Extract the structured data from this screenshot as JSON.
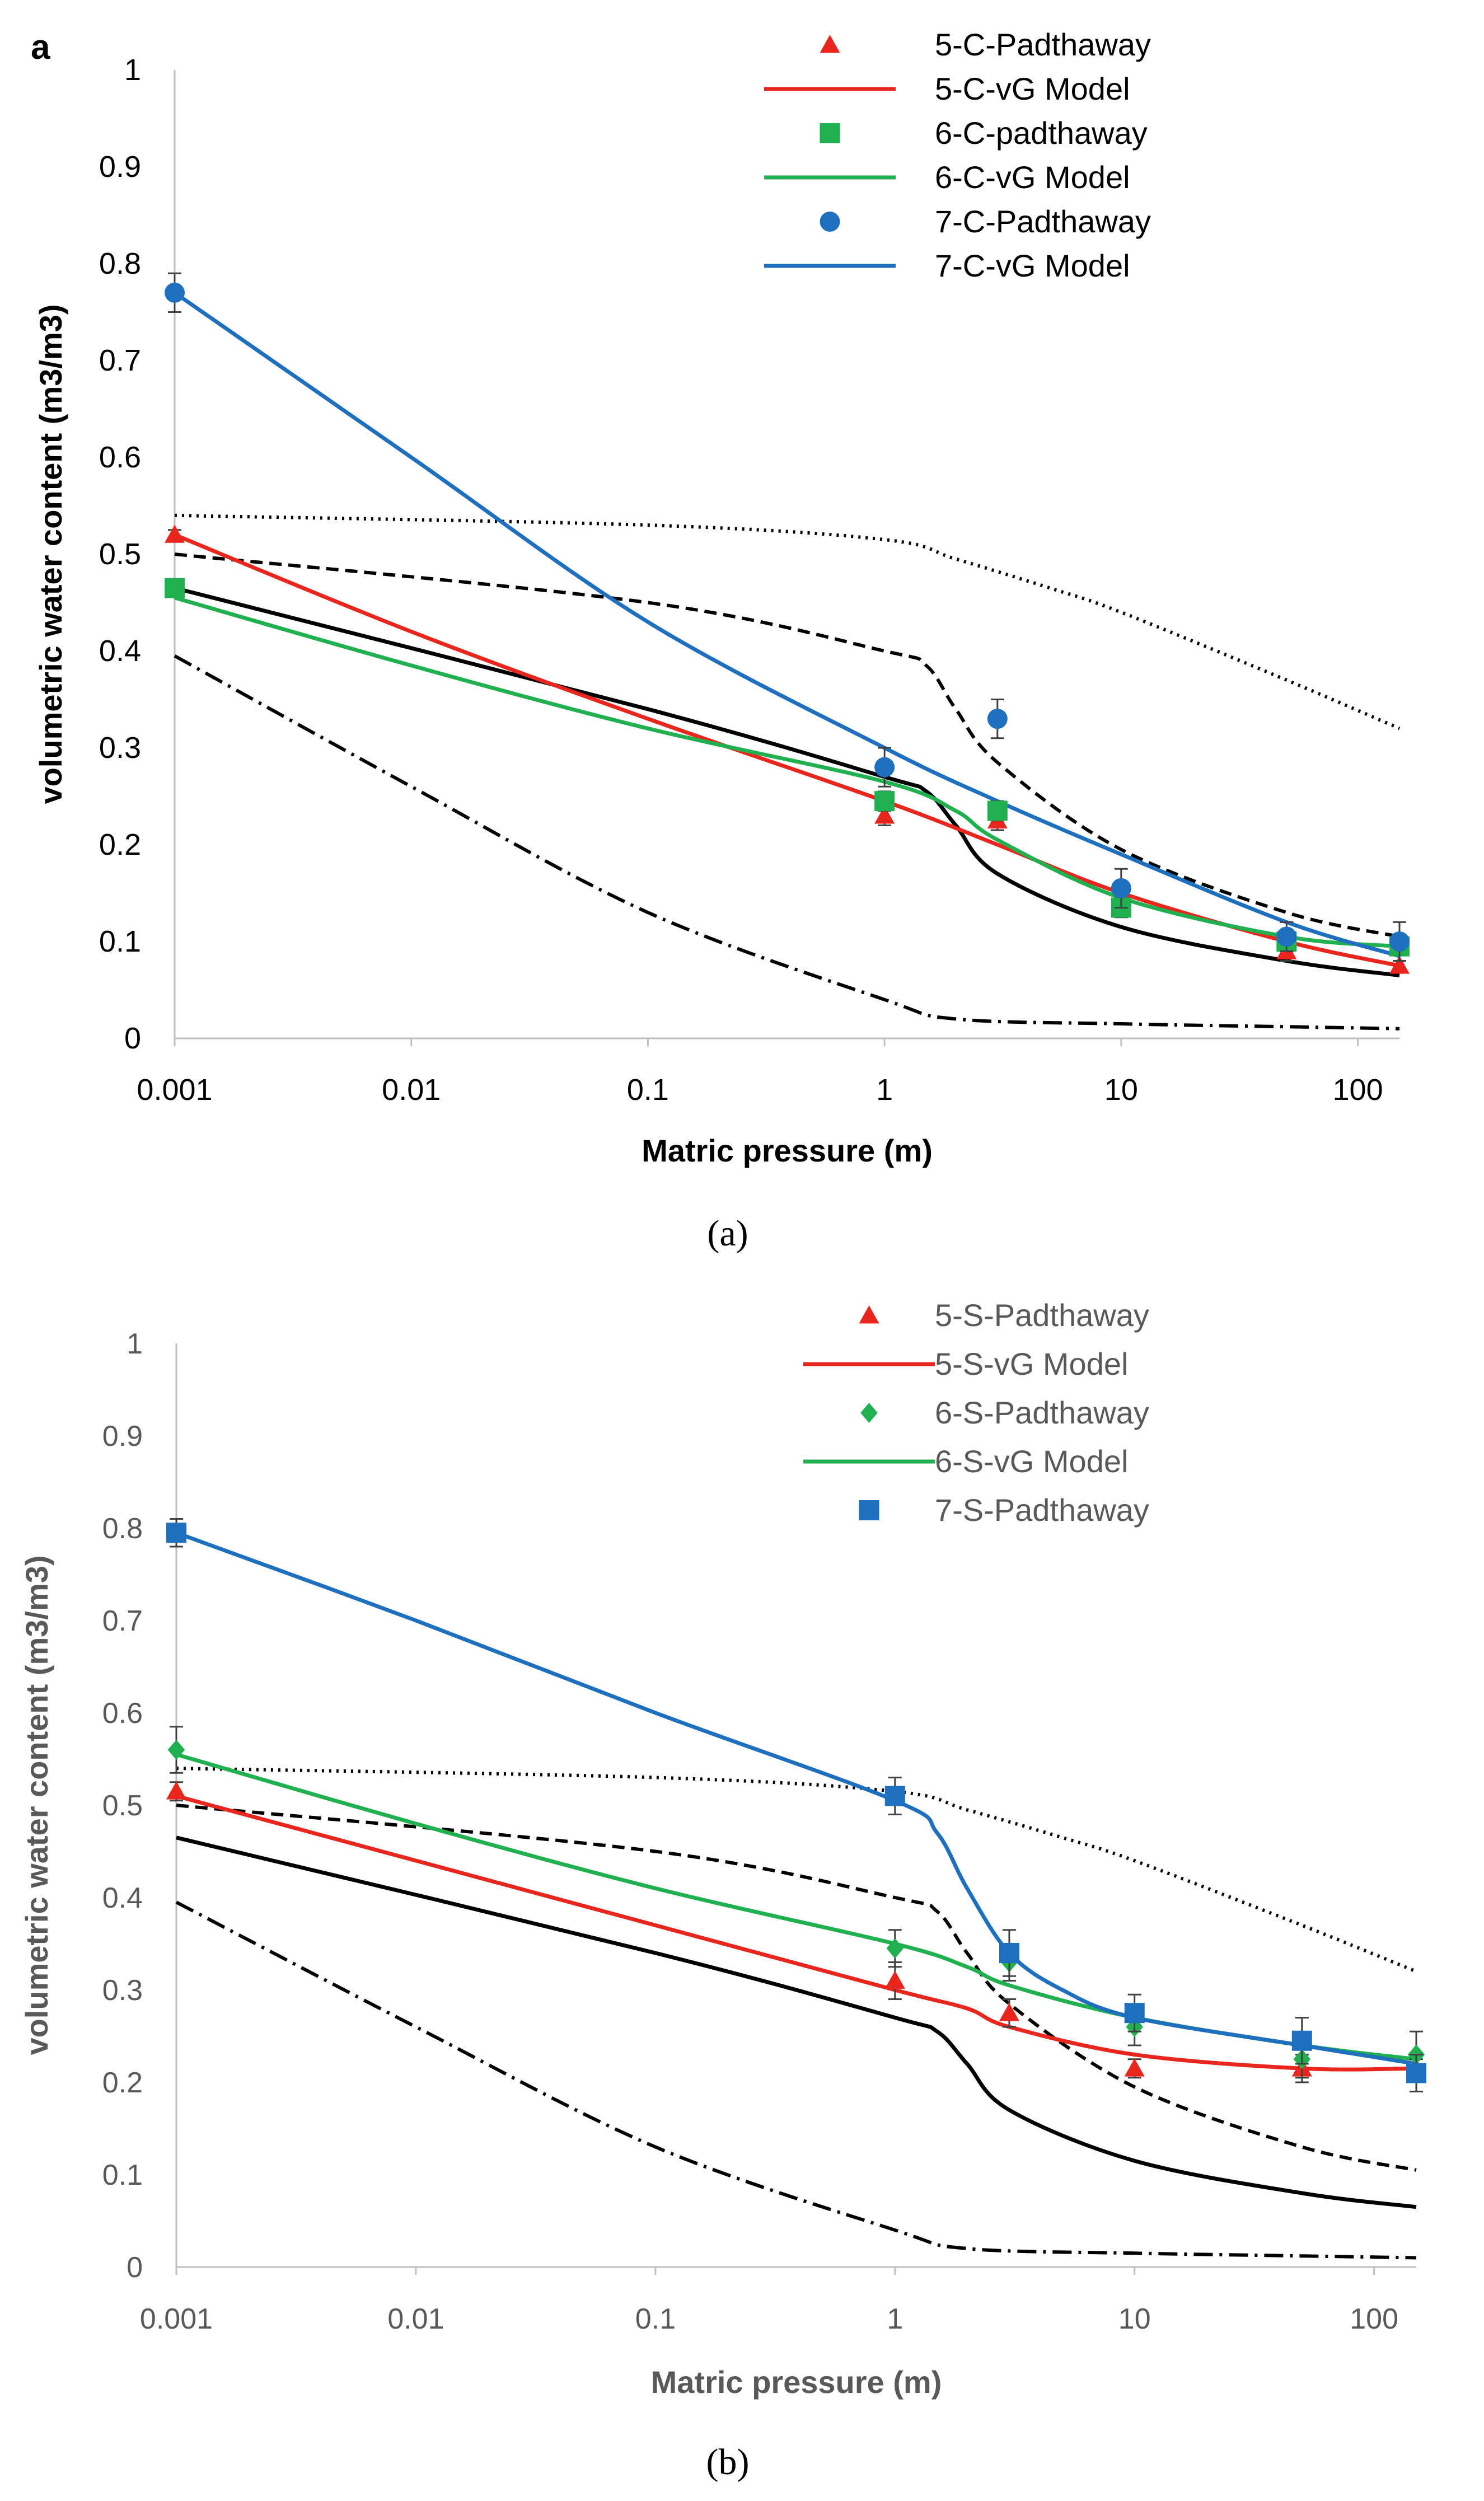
{
  "panel_letter": "a",
  "captions": [
    "(a)",
    "(b)"
  ],
  "colors": {
    "red": "#e8261d",
    "green": "#20b050",
    "blue": "#1f6fbf",
    "black": "#000000"
  },
  "chart_data": [
    {
      "type": "line",
      "xscale": "log",
      "xlabel": "Matric pressure (m)",
      "ylabel": "volumetric water content (m3/m3)",
      "xlim": [
        0.001,
        150
      ],
      "ylim": [
        0,
        1
      ],
      "xticks": [
        "0.001",
        "0.01",
        "0.1",
        "1",
        "10",
        "100"
      ],
      "yticks": [
        "0",
        "0.1",
        "0.2",
        "0.3",
        "0.4",
        "0.5",
        "0.6",
        "0.7",
        "0.8",
        "0.9",
        "1"
      ],
      "legend": "top-right",
      "points": [
        {
          "name": "5-C-Padthaway",
          "color": "#e8261d",
          "marker": "triangle",
          "x": [
            0.001,
            1,
            3,
            10,
            50,
            150
          ],
          "y": [
            0.52,
            0.23,
            0.225,
            0.14,
            0.09,
            0.075
          ],
          "err": [
            0.005,
            0.01,
            0.01,
            0.01,
            0.01,
            0.005
          ]
        },
        {
          "name": "6-C-padthaway",
          "color": "#20b050",
          "marker": "square",
          "x": [
            0.001,
            1,
            3,
            10,
            50,
            150
          ],
          "y": [
            0.465,
            0.245,
            0.235,
            0.135,
            0.1,
            0.095
          ],
          "err": [
            0.005,
            0.01,
            0.01,
            0.01,
            0.01,
            0.005
          ]
        },
        {
          "name": "7-C-Padthaway",
          "color": "#1f6fbf",
          "marker": "circle",
          "x": [
            0.001,
            1,
            3,
            10,
            50,
            150
          ],
          "y": [
            0.77,
            0.28,
            0.33,
            0.155,
            0.105,
            0.1
          ],
          "err": [
            0.02,
            0.02,
            0.02,
            0.02,
            0.015,
            0.02
          ]
        }
      ],
      "models": [
        {
          "name": "5-C-vG Model",
          "color": "#e8261d",
          "x": [
            0.001,
            0.01,
            0.1,
            1,
            3,
            10,
            50,
            150
          ],
          "y": [
            0.52,
            0.42,
            0.33,
            0.245,
            0.2,
            0.15,
            0.1,
            0.075
          ]
        },
        {
          "name": "6-C-vG Model",
          "color": "#20b050",
          "x": [
            0.001,
            0.01,
            0.1,
            1,
            2,
            3,
            10,
            50,
            150
          ],
          "y": [
            0.455,
            0.385,
            0.32,
            0.265,
            0.235,
            0.205,
            0.145,
            0.105,
            0.095
          ]
        },
        {
          "name": "7-C-vG Model",
          "color": "#1f6fbf",
          "x": [
            0.001,
            0.01,
            0.1,
            1,
            3,
            10,
            50,
            150
          ],
          "y": [
            0.77,
            0.6,
            0.43,
            0.3,
            0.245,
            0.19,
            0.12,
            0.085
          ]
        }
      ],
      "reference_curves": [
        {
          "style": "dotted",
          "x": [
            0.001,
            0.1,
            1,
            2,
            5,
            10,
            50,
            150
          ],
          "y": [
            0.54,
            0.53,
            0.515,
            0.495,
            0.465,
            0.44,
            0.37,
            0.32
          ]
        },
        {
          "style": "dashed",
          "x": [
            0.001,
            0.1,
            1,
            1.5,
            2,
            3,
            10,
            50,
            150
          ],
          "y": [
            0.5,
            0.45,
            0.4,
            0.385,
            0.34,
            0.285,
            0.195,
            0.13,
            0.105
          ]
        },
        {
          "style": "solid",
          "x": [
            0.001,
            0.1,
            1,
            1.5,
            2,
            3,
            10,
            50,
            150
          ],
          "y": [
            0.465,
            0.34,
            0.27,
            0.255,
            0.22,
            0.17,
            0.115,
            0.08,
            0.065
          ]
        },
        {
          "style": "dashdot",
          "x": [
            0.001,
            0.01,
            0.1,
            1,
            2,
            10,
            50,
            150
          ],
          "y": [
            0.395,
            0.26,
            0.13,
            0.04,
            0.02,
            0.015,
            0.012,
            0.01
          ]
        }
      ]
    },
    {
      "type": "line",
      "xscale": "log",
      "xlabel": "Matric pressure (m)",
      "ylabel": "volumetric water content (m3/m3)",
      "xlim": [
        0.001,
        150
      ],
      "ylim": [
        0,
        1
      ],
      "xticks": [
        "0.001",
        "0.01",
        "0.1",
        "1",
        "10",
        "100"
      ],
      "yticks": [
        "0",
        "0.1",
        "0.2",
        "0.3",
        "0.4",
        "0.5",
        "0.6",
        "0.7",
        "0.8",
        "0.9",
        "1"
      ],
      "legend": "top-right",
      "points": [
        {
          "name": "5-S-Padthaway",
          "color": "#e8261d",
          "marker": "triangle",
          "x": [
            0.001,
            1,
            3,
            10,
            50,
            150
          ],
          "y": [
            0.515,
            0.31,
            0.275,
            0.215,
            0.215,
            0.215
          ],
          "err": [
            0.01,
            0.02,
            0.015,
            0.01,
            0.015,
            0.01
          ]
        },
        {
          "name": "6-S-Padthaway",
          "color": "#20b050",
          "marker": "diamond",
          "x": [
            0.001,
            1,
            3,
            10,
            50,
            150
          ],
          "y": [
            0.56,
            0.345,
            0.33,
            0.26,
            0.225,
            0.23
          ],
          "err": [
            0.025,
            0.02,
            0.02,
            0.02,
            0.02,
            0.025
          ]
        },
        {
          "name": "7-S-Padthaway",
          "color": "#1f6fbf",
          "marker": "square",
          "x": [
            0.001,
            1,
            3,
            10,
            50,
            150
          ],
          "y": [
            0.795,
            0.51,
            0.34,
            0.275,
            0.245,
            0.21
          ],
          "err": [
            0.015,
            0.02,
            0.025,
            0.02,
            0.025,
            0.02
          ]
        }
      ],
      "models": [
        {
          "name": "5-S-vG Model",
          "color": "#e8261d",
          "x": [
            0.001,
            0.01,
            0.1,
            1,
            2,
            3,
            10,
            50,
            150
          ],
          "y": [
            0.51,
            0.44,
            0.37,
            0.3,
            0.28,
            0.26,
            0.23,
            0.215,
            0.215
          ]
        },
        {
          "name": "6-S-vG Model",
          "color": "#20b050",
          "x": [
            0.001,
            0.01,
            0.1,
            1,
            2,
            3,
            10,
            50,
            150
          ],
          "y": [
            0.555,
            0.48,
            0.41,
            0.35,
            0.325,
            0.305,
            0.27,
            0.24,
            0.225
          ]
        },
        {
          "name": "7-S-vG Model",
          "color": "#1f6fbf",
          "in_legend": false,
          "x": [
            0.001,
            0.01,
            0.1,
            1,
            1.5,
            2,
            3,
            5,
            10,
            50,
            150
          ],
          "y": [
            0.795,
            0.7,
            0.6,
            0.505,
            0.47,
            0.41,
            0.34,
            0.3,
            0.27,
            0.24,
            0.22
          ]
        }
      ],
      "reference_curves": [
        {
          "style": "dotted",
          "x": [
            0.001,
            0.1,
            1,
            2,
            5,
            10,
            50,
            150
          ],
          "y": [
            0.54,
            0.53,
            0.515,
            0.495,
            0.465,
            0.44,
            0.37,
            0.32
          ]
        },
        {
          "style": "dashed",
          "x": [
            0.001,
            0.1,
            1,
            1.5,
            2,
            3,
            10,
            50,
            150
          ],
          "y": [
            0.5,
            0.45,
            0.4,
            0.385,
            0.34,
            0.285,
            0.195,
            0.13,
            0.105
          ]
        },
        {
          "style": "solid",
          "x": [
            0.001,
            0.1,
            1,
            1.5,
            2,
            3,
            10,
            50,
            150
          ],
          "y": [
            0.465,
            0.34,
            0.27,
            0.255,
            0.22,
            0.17,
            0.115,
            0.08,
            0.065
          ]
        },
        {
          "style": "dashdot",
          "x": [
            0.001,
            0.01,
            0.1,
            1,
            2,
            10,
            50,
            150
          ],
          "y": [
            0.395,
            0.26,
            0.13,
            0.04,
            0.02,
            0.015,
            0.012,
            0.01
          ]
        }
      ]
    }
  ]
}
